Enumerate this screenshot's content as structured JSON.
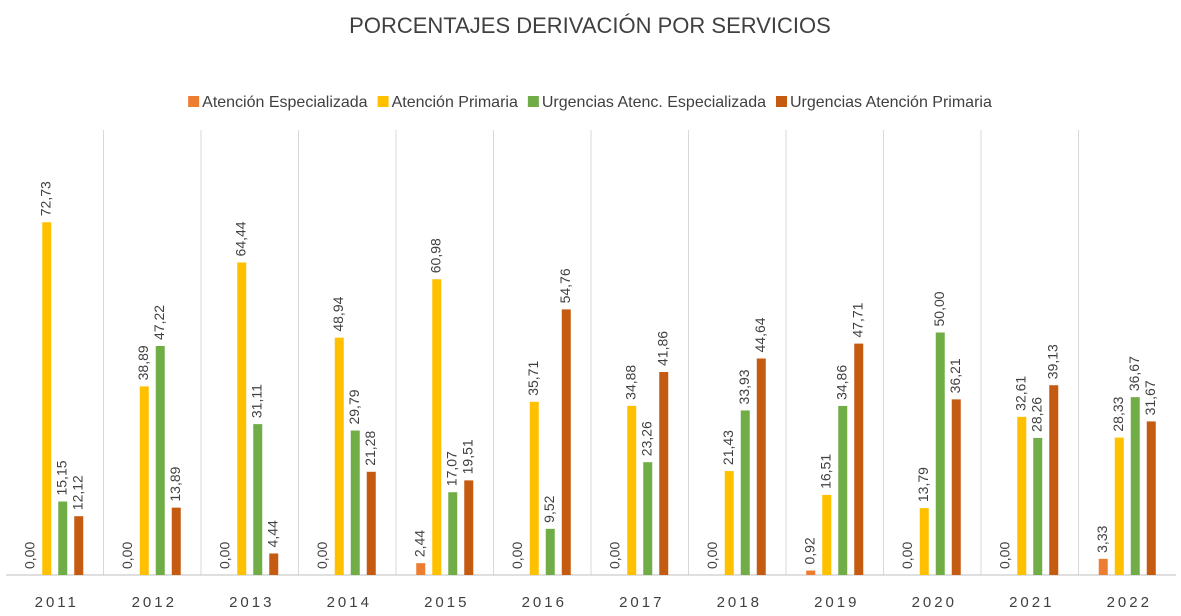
{
  "chart_data": {
    "type": "bar",
    "title": "PORCENTAJES DERIVACIÓN POR SERVICIOS",
    "categories": [
      "2011",
      "2012",
      "2013",
      "2014",
      "2015",
      "2016",
      "2017",
      "2018",
      "2019",
      "2020",
      "2021",
      "2022"
    ],
    "series": [
      {
        "name": "Atención Especializada",
        "color": "#ed7d31",
        "values": [
          0,
          0,
          0,
          0,
          2.44,
          0,
          0,
          0,
          0.92,
          0,
          0,
          3.33
        ],
        "value_labels": [
          "0,00",
          "0,00",
          "0,00",
          "0,00",
          "2,44",
          "0,00",
          "0,00",
          "0,00",
          "0,92",
          "0,00",
          "0,00",
          "3,33"
        ]
      },
      {
        "name": "Atención Primaria",
        "color": "#ffc000",
        "values": [
          72.73,
          38.89,
          64.44,
          48.94,
          60.98,
          35.71,
          34.88,
          21.43,
          16.51,
          13.79,
          32.61,
          28.33
        ],
        "value_labels": [
          "72,73",
          "38,89",
          "64,44",
          "48,94",
          "60,98",
          "35,71",
          "34,88",
          "21,43",
          "16,51",
          "13,79",
          "32,61",
          "28,33"
        ]
      },
      {
        "name": "Urgencias Atenc. Especializada",
        "color": "#70ad47",
        "values": [
          15.15,
          47.22,
          31.11,
          29.79,
          17.07,
          9.52,
          23.26,
          33.93,
          34.86,
          50.0,
          28.26,
          36.67
        ],
        "value_labels": [
          "15,15",
          "47,22",
          "31,11",
          "29,79",
          "17,07",
          "9,52",
          "23,26",
          "33,93",
          "34,86",
          "50,00",
          "28,26",
          "36,67"
        ]
      },
      {
        "name": "Urgencias Atención Primaria",
        "color": "#c55a11",
        "values": [
          12.12,
          13.89,
          4.44,
          21.28,
          19.51,
          54.76,
          41.86,
          44.64,
          47.71,
          36.21,
          39.13,
          31.67
        ],
        "value_labels": [
          "12,12",
          "13,89",
          "4,44",
          "21,28",
          "19,51",
          "54,76",
          "41,86",
          "44,64",
          "47,71",
          "36,21",
          "39,13",
          "31,67"
        ]
      }
    ],
    "ylim": [
      0,
      80
    ],
    "legend": "top"
  }
}
